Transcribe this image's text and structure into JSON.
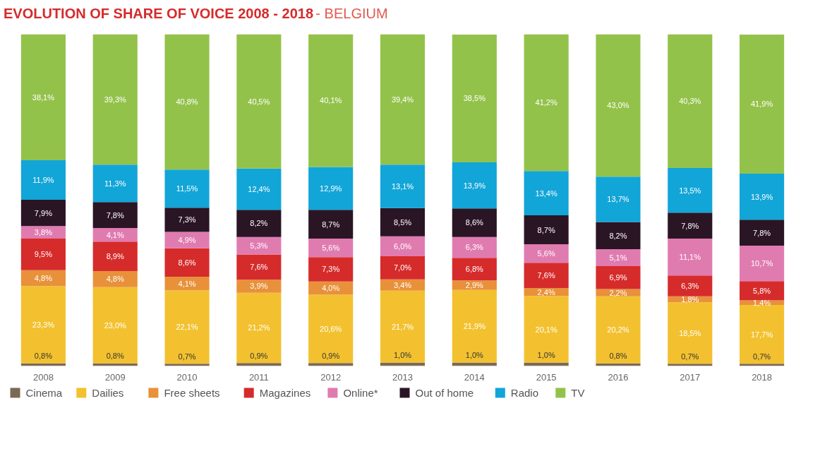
{
  "chart_data": {
    "type": "bar",
    "stacked": true,
    "title": "EVOLUTION OF SHARE OF VOICE 2008 - 2018",
    "subtitle": "- BELGIUM",
    "categories": [
      "2008",
      "2009",
      "2010",
      "2011",
      "2012",
      "2013",
      "2014",
      "2015",
      "2016",
      "2017",
      "2018"
    ],
    "ylim": [
      0,
      100
    ],
    "tick_labels": "x",
    "grid": false,
    "legend": "bottom",
    "series": [
      {
        "name": "Cinema",
        "color": "#7a6a55",
        "values": [
          0.8,
          0.8,
          0.7,
          0.9,
          0.9,
          1.0,
          1.0,
          1.0,
          0.8,
          0.7,
          0.7
        ],
        "value_labels": [
          "0,8%",
          "0,8%",
          "0,7%",
          "0,9%",
          "0,9%",
          "1,0%",
          "1,0%",
          "1,0%",
          "0,8%",
          "0,7%",
          "0,7%"
        ]
      },
      {
        "name": "Dailies",
        "color": "#f3c12f",
        "values": [
          23.3,
          23.0,
          22.1,
          21.2,
          20.6,
          21.7,
          21.9,
          20.1,
          20.2,
          18.5,
          17.7
        ],
        "value_labels": [
          "23,3%",
          "23,0%",
          "22,1%",
          "21,2%",
          "20,6%",
          "21,7%",
          "21,9%",
          "20,1%",
          "20,2%",
          "18,5%",
          "17,7%"
        ]
      },
      {
        "name": "Free sheets",
        "color": "#e8913a",
        "values": [
          4.8,
          4.8,
          4.1,
          3.9,
          4.0,
          3.4,
          2.9,
          2.4,
          2.2,
          1.8,
          1.4
        ],
        "value_labels": [
          "4,8%",
          "4,8%",
          "4,1%",
          "3,9%",
          "4,0%",
          "3,4%",
          "2,9%",
          "2,4%",
          "2,2%",
          "1,8%",
          "1,4%"
        ]
      },
      {
        "name": "Magazines",
        "color": "#d62b2b",
        "values": [
          9.5,
          8.9,
          8.6,
          7.6,
          7.3,
          7.0,
          6.8,
          7.6,
          6.9,
          6.3,
          5.8
        ],
        "value_labels": [
          "9,5%",
          "8,9%",
          "8,6%",
          "7,6%",
          "7,3%",
          "7,0%",
          "6,8%",
          "7,6%",
          "6,9%",
          "6,3%",
          "5,8%"
        ]
      },
      {
        "name": "Online*",
        "color": "#e07bb0",
        "values": [
          3.8,
          4.1,
          4.9,
          5.3,
          5.6,
          6.0,
          6.3,
          5.6,
          5.1,
          11.1,
          10.7
        ],
        "value_labels": [
          "3,8%",
          "4,1%",
          "4,9%",
          "5,3%",
          "5,6%",
          "6,0%",
          "6,3%",
          "5,6%",
          "5,1%",
          "11,1%",
          "10,7%"
        ]
      },
      {
        "name": "Out of home",
        "color": "#2a1525",
        "values": [
          7.9,
          7.8,
          7.3,
          8.2,
          8.7,
          8.5,
          8.6,
          8.7,
          8.2,
          7.8,
          7.8
        ],
        "value_labels": [
          "7,9%",
          "7,8%",
          "7,3%",
          "8,2%",
          "8,7%",
          "8,5%",
          "8,6%",
          "8,7%",
          "8,2%",
          "7,8%",
          "7,8%"
        ]
      },
      {
        "name": "Radio",
        "color": "#12a5d8",
        "values": [
          11.9,
          11.3,
          11.5,
          12.4,
          12.9,
          13.1,
          13.9,
          13.4,
          13.7,
          13.5,
          13.9
        ],
        "value_labels": [
          "11,9%",
          "11,3%",
          "11,5%",
          "12,4%",
          "12,9%",
          "13,1%",
          "13,9%",
          "13,4%",
          "13,7%",
          "13,5%",
          "13,9%"
        ]
      },
      {
        "name": "TV",
        "color": "#93c24a",
        "values": [
          38.1,
          39.3,
          40.8,
          40.5,
          40.1,
          39.4,
          38.5,
          41.2,
          43.0,
          40.3,
          41.9
        ],
        "value_labels": [
          "38,1%",
          "39,3%",
          "40,8%",
          "40,5%",
          "40,1%",
          "39,4%",
          "38,5%",
          "41,2%",
          "43,0%",
          "40,3%",
          "41,9%"
        ]
      }
    ]
  }
}
